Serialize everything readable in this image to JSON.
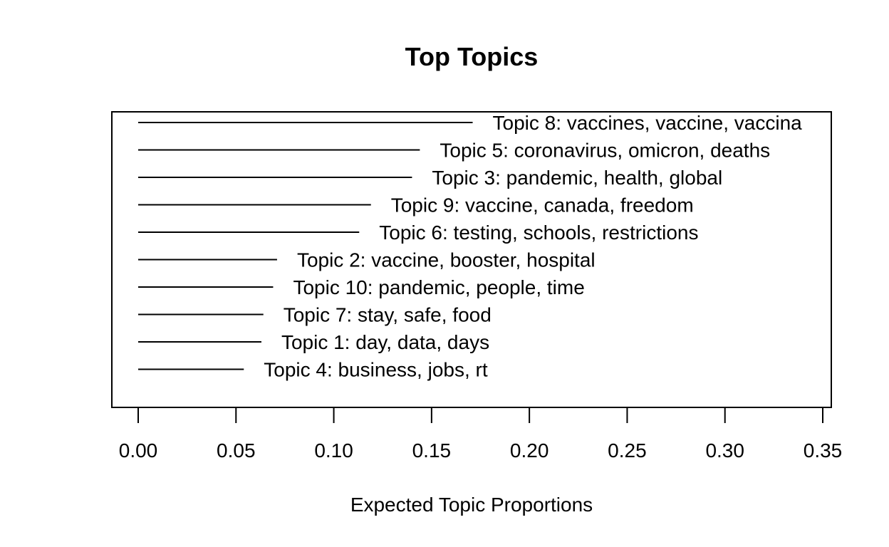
{
  "chart_data": {
    "type": "bar",
    "title": "Top Topics",
    "xlabel": "Expected Topic Proportions",
    "ylabel": "",
    "xlim": [
      0,
      0.35
    ],
    "x_ticks": [
      "0.00",
      "0.05",
      "0.10",
      "0.15",
      "0.20",
      "0.25",
      "0.30",
      "0.35"
    ],
    "orientation": "horizontal",
    "bar_style": "line",
    "grid": false,
    "categories": [
      "Topic 8: vaccines, vaccine, vaccina",
      "Topic 5: coronavirus, omicron, deaths",
      "Topic 3: pandemic, health, global",
      "Topic 9: vaccine, canada, freedom",
      "Topic 6: testing, schools, restrictions",
      "Topic 2: vaccine, booster, hospital",
      "Topic 10: pandemic, people, time",
      "Topic 7: stay, safe, food",
      "Topic 1: day, data, days",
      "Topic 4: business, jobs, rt"
    ],
    "values": [
      0.171,
      0.144,
      0.14,
      0.119,
      0.113,
      0.071,
      0.069,
      0.064,
      0.063,
      0.054
    ]
  }
}
